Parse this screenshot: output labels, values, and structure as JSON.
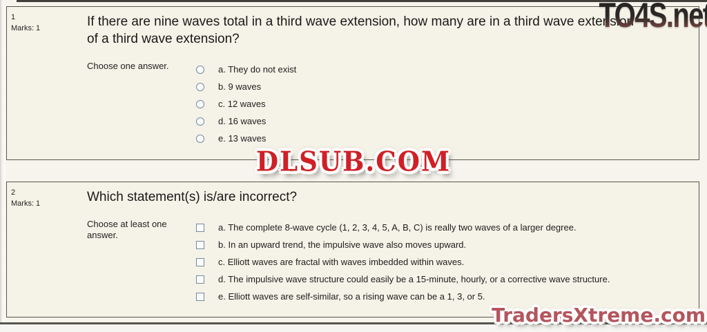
{
  "watermarks": {
    "top_right": "TO4S.net",
    "center": "DLSUB.COM",
    "bottom_right": "TradersXtreme.com"
  },
  "colors": {
    "watermark_center_red": "#cf2026",
    "watermark_bottom_rose": "#b4555c",
    "box_background": "#f5f2e7",
    "box_border": "#56554b",
    "control_border": "#7388a0"
  },
  "questions": [
    {
      "number": "1",
      "marks": "Marks: 1",
      "title": "If there are nine waves total in a third wave extension, how many are in a third wave extension of a third wave extension?",
      "prompt": "Choose one answer.",
      "options": [
        "a. They do not exist",
        "b. 9 waves",
        "c. 12 waves",
        "d. 16 waves",
        "e. 13 waves"
      ]
    },
    {
      "number": "2",
      "marks": "Marks: 1",
      "title": "Which statement(s) is/are incorrect?",
      "prompt": "Choose at least one answer.",
      "options": [
        "a. The complete 8-wave cycle (1, 2, 3, 4, 5, A, B, C) is really two waves of a larger degree.",
        "b. In an upward trend, the impulsive wave also moves upward.",
        "c. Elliott waves are fractal with waves imbedded within waves.",
        "d. The impulsive wave structure could easily be a 15-minute, hourly, or a corrective wave structure.",
        "e. Elliott waves are self-similar, so a rising wave can be a 1, 3, or 5."
      ]
    }
  ]
}
